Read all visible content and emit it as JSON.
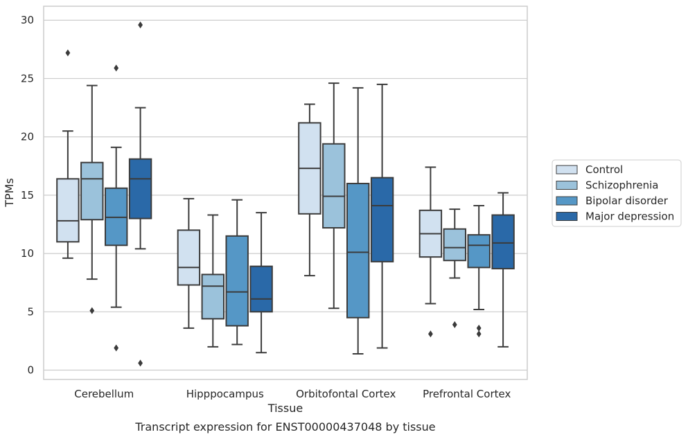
{
  "caption": "Transcript expression for ENST00000437048 by tissue",
  "chart_data": {
    "type": "box",
    "title": "",
    "xlabel": "Tissue",
    "ylabel": "TPMs",
    "ylim": [
      -0.8,
      31.2
    ],
    "yticks": [
      0,
      5,
      10,
      15,
      20,
      25,
      30
    ],
    "categories": [
      "Cerebellum",
      "Hipppocampus",
      "Orbitofontal Cortex",
      "Prefrontal Cortex"
    ],
    "grid": "horizontal",
    "legend_position": "right",
    "series": [
      {
        "name": "Control",
        "color": "#d1e1f0",
        "boxes": [
          {
            "whislo": 9.6,
            "q1": 11.0,
            "med": 12.8,
            "q3": 16.4,
            "whishi": 20.5,
            "fliers": [
              27.2
            ]
          },
          {
            "whislo": 3.6,
            "q1": 7.3,
            "med": 8.8,
            "q3": 12.0,
            "whishi": 14.7,
            "fliers": []
          },
          {
            "whislo": 8.1,
            "q1": 13.4,
            "med": 17.3,
            "q3": 21.2,
            "whishi": 22.8,
            "fliers": []
          },
          {
            "whislo": 5.7,
            "q1": 9.7,
            "med": 11.7,
            "q3": 13.7,
            "whishi": 17.4,
            "fliers": [
              3.1
            ]
          }
        ]
      },
      {
        "name": "Schizophrenia",
        "color": "#9bc2db",
        "boxes": [
          {
            "whislo": 7.8,
            "q1": 12.9,
            "med": 16.4,
            "q3": 17.8,
            "whishi": 24.4,
            "fliers": [
              5.1
            ]
          },
          {
            "whislo": 2.0,
            "q1": 4.4,
            "med": 7.2,
            "q3": 8.2,
            "whishi": 13.3,
            "fliers": []
          },
          {
            "whislo": 5.3,
            "q1": 12.2,
            "med": 14.9,
            "q3": 19.4,
            "whishi": 24.6,
            "fliers": []
          },
          {
            "whislo": 7.9,
            "q1": 9.4,
            "med": 10.5,
            "q3": 12.1,
            "whishi": 13.8,
            "fliers": [
              3.9
            ]
          }
        ]
      },
      {
        "name": "Bipolar disorder",
        "color": "#5597c6",
        "boxes": [
          {
            "whislo": 5.4,
            "q1": 10.7,
            "med": 13.1,
            "q3": 15.6,
            "whishi": 19.1,
            "fliers": [
              25.9,
              1.9
            ]
          },
          {
            "whislo": 2.2,
            "q1": 3.8,
            "med": 6.7,
            "q3": 11.5,
            "whishi": 14.6,
            "fliers": []
          },
          {
            "whislo": 1.4,
            "q1": 4.5,
            "med": 10.1,
            "q3": 16.0,
            "whishi": 24.2,
            "fliers": []
          },
          {
            "whislo": 5.2,
            "q1": 8.8,
            "med": 10.7,
            "q3": 11.6,
            "whishi": 14.1,
            "fliers": [
              3.6,
              3.1
            ]
          }
        ]
      },
      {
        "name": "Major depression",
        "color": "#2a69a8",
        "boxes": [
          {
            "whislo": 10.4,
            "q1": 13.0,
            "med": 16.4,
            "q3": 18.1,
            "whishi": 22.5,
            "fliers": [
              29.6,
              0.6
            ]
          },
          {
            "whislo": 1.5,
            "q1": 5.0,
            "med": 6.1,
            "q3": 8.9,
            "whishi": 13.5,
            "fliers": []
          },
          {
            "whislo": 1.9,
            "q1": 9.3,
            "med": 14.1,
            "q3": 16.5,
            "whishi": 24.5,
            "fliers": []
          },
          {
            "whislo": 2.0,
            "q1": 8.7,
            "med": 10.9,
            "q3": 13.3,
            "whishi": 15.2,
            "fliers": []
          }
        ]
      }
    ]
  }
}
